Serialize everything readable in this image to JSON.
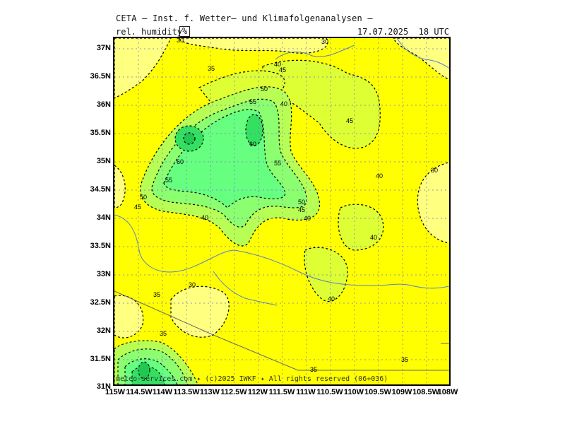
{
  "header": {
    "title": "CETA — Inst. f. Wetter— und Klimafolgenanalysen —",
    "parameter": "rel. humidity",
    "unit": "%",
    "valid_time": "17.07.2025  18 UTC"
  },
  "footer": {
    "credit": "meteo-services.com ✦ (c)2025 IWKF ✦ All rights reserved (06+036)"
  },
  "map": {
    "field": "relative humidity",
    "fill_color_base": "#ffff00",
    "fill_colors": {
      "below_35": "#ffff80",
      "35_40": "#ffff00",
      "40_45": "#ddff33",
      "45_50": "#b8ff55",
      "50_55": "#8cff70",
      "55_60": "#66ff80",
      "above_60": "#33e060"
    },
    "latitude_labels": [
      "37N",
      "36.5N",
      "36N",
      "35.5N",
      "35N",
      "34.5N",
      "34N",
      "33.5N",
      "33N",
      "32.5N",
      "32N",
      "31.5N",
      "31N"
    ],
    "longitude_labels": [
      "115W",
      "114.5W",
      "114W",
      "113.5W",
      "113W",
      "112.5W",
      "112W",
      "111.5W",
      "111W",
      "110.5W",
      "110W",
      "109.5W",
      "109W",
      "108.5W",
      "108W"
    ],
    "contour_labels": [
      "30",
      "30",
      "30",
      "30",
      "35",
      "35",
      "35",
      "35",
      "35",
      "40",
      "40",
      "40",
      "40",
      "40",
      "40",
      "40",
      "45",
      "45",
      "45",
      "45",
      "50",
      "50",
      "50",
      "55",
      "55",
      "55",
      "60",
      "60"
    ]
  }
}
